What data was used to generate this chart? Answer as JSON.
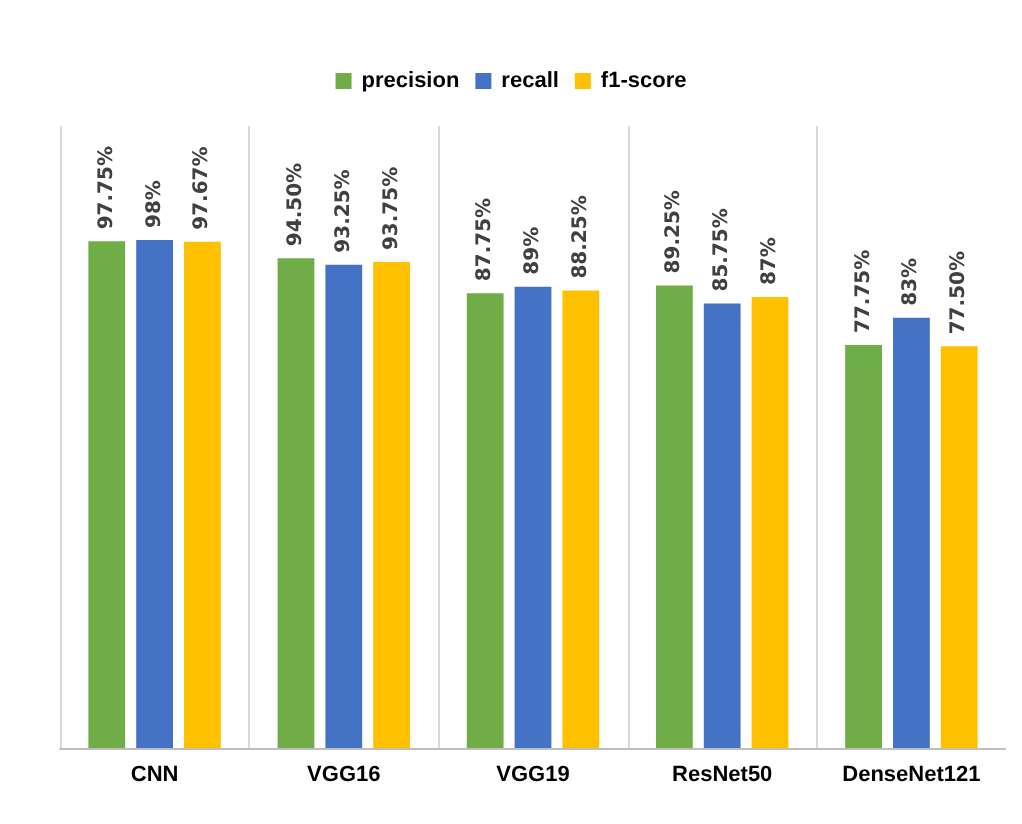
{
  "chart_data": {
    "type": "bar",
    "categories": [
      "CNN",
      "VGG16",
      "VGG19",
      "ResNet50",
      "DenseNet121"
    ],
    "series": [
      {
        "name": "precision",
        "color": "#70ad47",
        "values": [
          97.75,
          94.5,
          87.75,
          89.25,
          77.75
        ],
        "value_labels": [
          "97.75%",
          "94.50%",
          "87.75%",
          "89.25%",
          "77.75%"
        ]
      },
      {
        "name": "recall",
        "color": "#4472c4",
        "values": [
          98,
          93.25,
          89,
          85.75,
          83
        ],
        "value_labels": [
          "98%",
          "93.25%",
          "89%",
          "85.75%",
          "83%"
        ]
      },
      {
        "name": "f1-score",
        "color": "#ffc000",
        "values": [
          97.67,
          93.75,
          88.25,
          87,
          77.5
        ],
        "value_labels": [
          "97.67%",
          "93.75%",
          "88.25%",
          "87%",
          "77.50%"
        ]
      }
    ],
    "ylim": [
      0,
      120
    ],
    "grid": "x",
    "legend": "top",
    "tick_labels": "x"
  }
}
